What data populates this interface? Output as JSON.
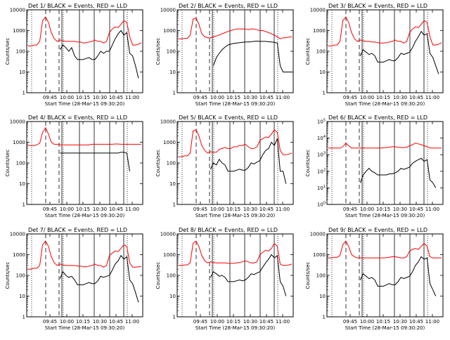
{
  "chart_data": [
    {
      "type": "line",
      "title": "Det 1/ BLACK = Events, RED = LLD",
      "xlabel": "Start Time (28-Mar-15 09:30:20)",
      "ylabel": "Counts/sec",
      "yscale": "log",
      "ylim": [
        1,
        10000
      ],
      "ytick_labels": [
        "1",
        "10",
        "100",
        "1000",
        "10000"
      ],
      "xtick_labels": [
        "09:45",
        "10:00",
        "10:15",
        "10:30",
        "10:45",
        "11:00"
      ],
      "series": [
        {
          "color": "#000000",
          "values": [
            null,
            null,
            null,
            null,
            null,
            null,
            null,
            null,
            null,
            null,
            null,
            120,
            200,
            150,
            100,
            150,
            60,
            40,
            40,
            40,
            45,
            50,
            40,
            40,
            60,
            100,
            80,
            100,
            100,
            200,
            400,
            700,
            1000,
            600,
            800,
            80,
            60,
            20,
            5,
            null
          ]
        },
        {
          "color": "#ff0000",
          "values": [
            180,
            180,
            200,
            200,
            300,
            3000,
            4500,
            2500,
            800,
            400,
            300,
            350,
            320,
            300,
            300,
            300,
            300,
            280,
            280,
            250,
            260,
            280,
            300,
            350,
            300,
            300,
            250,
            300,
            800,
            1200,
            1500,
            1400,
            2000,
            3000,
            2500,
            500,
            200,
            200,
            220,
            260
          ]
        }
      ]
    },
    {
      "type": "line",
      "title": "Det 2/ BLACK = Events, RED = LLD",
      "xlabel": "Start Time (28-Mar-15 09:30:20)",
      "ylabel": "Counts/sec",
      "yscale": "log",
      "ylim": [
        1,
        10000
      ],
      "ytick_labels": [
        "1",
        "10",
        "100",
        "1000",
        "10000"
      ],
      "xtick_labels": [
        "09:45",
        "10:00",
        "10:15",
        "10:30",
        "10:45",
        "11:00"
      ],
      "series": [
        {
          "color": "#000000",
          "values": [
            null,
            null,
            null,
            null,
            null,
            null,
            null,
            null,
            null,
            null,
            null,
            null,
            20,
            50,
            80,
            120,
            160,
            200,
            220,
            240,
            250,
            260,
            270,
            280,
            280,
            290,
            300,
            310,
            300,
            300,
            300,
            290,
            280,
            270,
            250,
            20,
            10,
            10,
            10,
            10
          ]
        },
        {
          "color": "#ff0000",
          "values": [
            400,
            400,
            420,
            420,
            600,
            3500,
            4000,
            2000,
            700,
            500,
            450,
            450,
            500,
            550,
            600,
            700,
            800,
            900,
            1000,
            1100,
            1200,
            1200,
            1200,
            1200,
            1100,
            1200,
            1200,
            1100,
            1000,
            1000,
            900,
            800,
            700,
            600,
            500,
            400,
            450,
            450,
            480,
            500
          ]
        }
      ]
    },
    {
      "type": "line",
      "title": "Det 3/ BLACK = Events, RED = LLD",
      "xlabel": "Start Time (28-Mar-15 09:30:20)",
      "ylabel": "Counts/sec",
      "yscale": "log",
      "ylim": [
        1,
        10000
      ],
      "ytick_labels": [
        "1",
        "10",
        "100",
        "1000",
        "10000"
      ],
      "xtick_labels": [
        "09:45",
        "10:00",
        "10:15",
        "10:30",
        "10:45",
        "11:00"
      ],
      "series": [
        {
          "color": "#000000",
          "values": [
            null,
            null,
            null,
            null,
            null,
            null,
            null,
            null,
            null,
            null,
            null,
            60,
            120,
            90,
            70,
            80,
            60,
            30,
            30,
            30,
            35,
            40,
            35,
            35,
            50,
            80,
            70,
            80,
            90,
            150,
            300,
            500,
            900,
            600,
            700,
            80,
            50,
            20,
            8,
            null
          ]
        },
        {
          "color": "#ff0000",
          "values": [
            180,
            180,
            200,
            200,
            300,
            3000,
            4500,
            2500,
            800,
            400,
            300,
            350,
            320,
            300,
            300,
            280,
            280,
            260,
            250,
            250,
            260,
            280,
            300,
            350,
            300,
            300,
            250,
            300,
            800,
            1200,
            1500,
            1400,
            2000,
            3000,
            2500,
            500,
            200,
            200,
            220,
            260
          ]
        }
      ]
    },
    {
      "type": "line",
      "title": "Det 4/ BLACK = Events, RED = LLD",
      "xlabel": "Start Time (28-Mar-15 09:30:20)",
      "ylabel": "Counts/sec",
      "yscale": "log",
      "ylim": [
        1,
        10000
      ],
      "ytick_labels": [
        "1",
        "10",
        "100",
        "1000",
        "10000"
      ],
      "xtick_labels": [
        "09:45",
        "10:00",
        "10:15",
        "10:30",
        "10:45",
        "11:00"
      ],
      "series": [
        {
          "color": "#000000",
          "values": [
            null,
            null,
            null,
            null,
            null,
            null,
            null,
            null,
            null,
            null,
            null,
            300,
            300,
            300,
            300,
            300,
            300,
            300,
            300,
            300,
            300,
            300,
            300,
            300,
            300,
            300,
            300,
            300,
            300,
            300,
            300,
            300,
            330,
            330,
            300,
            40,
            null,
            null,
            null,
            null
          ]
        },
        {
          "color": "#ff0000",
          "values": [
            700,
            700,
            700,
            750,
            900,
            3000,
            5000,
            2500,
            1000,
            800,
            800,
            750,
            750,
            750,
            750,
            750,
            750,
            750,
            750,
            750,
            750,
            750,
            800,
            800,
            800,
            800,
            800,
            800,
            800,
            800,
            820,
            820,
            800,
            800,
            800,
            800,
            800,
            800,
            800,
            800
          ]
        }
      ]
    },
    {
      "type": "line",
      "title": "Det 5/ BLACK = Events, RED = LLD",
      "xlabel": "Start Time (28-Mar-15 09:30:20)",
      "ylabel": "Counts/sec",
      "yscale": "log",
      "ylim": [
        1,
        10000
      ],
      "ytick_labels": [
        "1",
        "10",
        "100",
        "1000",
        "10000"
      ],
      "xtick_labels": [
        "09:45",
        "10:00",
        "10:15",
        "10:30",
        "10:45",
        "11:00"
      ],
      "series": [
        {
          "color": "#000000",
          "values": [
            null,
            null,
            null,
            null,
            null,
            null,
            null,
            null,
            null,
            null,
            null,
            50,
            100,
            80,
            150,
            100,
            80,
            40,
            40,
            40,
            45,
            50,
            45,
            45,
            60,
            100,
            90,
            110,
            130,
            250,
            400,
            500,
            1000,
            700,
            1500,
            40,
            40,
            10,
            null,
            null
          ]
        },
        {
          "color": "#ff0000",
          "values": [
            200,
            200,
            220,
            220,
            300,
            3500,
            4000,
            2000,
            700,
            400,
            300,
            350,
            320,
            330,
            450,
            500,
            550,
            500,
            500,
            600,
            600,
            700,
            700,
            800,
            600,
            500,
            500,
            600,
            1200,
            1500,
            1800,
            1700,
            2500,
            4000,
            3000,
            400,
            250,
            250,
            270,
            300
          ]
        }
      ]
    },
    {
      "type": "line",
      "title": "Det 6/ BLACK = Events, RED = LLD",
      "xlabel": "Start Time (28-Mar-15 09:30:20)",
      "ylabel": "Counts/sec",
      "yscale": "log",
      "ylim": [
        1,
        100000
      ],
      "ytick_labels": [
        "10^0",
        "10^1",
        "10^2",
        "10^3",
        "10^4",
        "10^5"
      ],
      "xtick_labels": [
        "09:45",
        "10:00",
        "10:15",
        "10:30",
        "10:45",
        "11:00"
      ],
      "series": [
        {
          "color": "#000000",
          "values": [
            null,
            null,
            null,
            null,
            null,
            null,
            null,
            null,
            null,
            null,
            null,
            20,
            60,
            100,
            150,
            100,
            80,
            60,
            60,
            60,
            60,
            70,
            70,
            80,
            100,
            150,
            130,
            150,
            180,
            300,
            400,
            500,
            600,
            400,
            500,
            30,
            20,
            10,
            null,
            null
          ]
        },
        {
          "color": "#ff0000",
          "values": [
            2500,
            2500,
            2500,
            2500,
            2500,
            3000,
            5000,
            3500,
            2500,
            2500,
            2500,
            2500,
            2500,
            2500,
            2500,
            2500,
            2500,
            2500,
            2500,
            2600,
            2700,
            2800,
            3000,
            3000,
            2800,
            2700,
            2700,
            2800,
            3500,
            4000,
            5000,
            4500,
            4000,
            3500,
            3000,
            2500,
            2500,
            2500,
            2500,
            2500
          ]
        }
      ]
    },
    {
      "type": "line",
      "title": "Det 7/ BLACK = Events, RED = LLD",
      "xlabel": "Start Time (28-Mar-15 09:30:20)",
      "ylabel": "Counts/sec",
      "yscale": "log",
      "ylim": [
        1,
        10000
      ],
      "ytick_labels": [
        "1",
        "10",
        "100",
        "1000",
        "10000"
      ],
      "xtick_labels": [
        "09:45",
        "10:00",
        "10:15",
        "10:30",
        "10:45",
        "11:00"
      ],
      "series": [
        {
          "color": "#000000",
          "values": [
            null,
            null,
            null,
            null,
            null,
            null,
            null,
            null,
            null,
            null,
            null,
            70,
            150,
            100,
            80,
            90,
            60,
            35,
            35,
            35,
            40,
            45,
            40,
            40,
            55,
            90,
            80,
            90,
            100,
            180,
            350,
            500,
            900,
            600,
            800,
            60,
            40,
            15,
            5,
            null
          ]
        },
        {
          "color": "#ff0000",
          "values": [
            200,
            200,
            220,
            220,
            300,
            3000,
            4500,
            2500,
            800,
            400,
            300,
            350,
            320,
            300,
            300,
            300,
            300,
            280,
            280,
            260,
            260,
            280,
            300,
            350,
            300,
            300,
            250,
            300,
            900,
            1200,
            1500,
            1400,
            2000,
            3000,
            2500,
            400,
            250,
            250,
            260,
            270
          ]
        }
      ]
    },
    {
      "type": "line",
      "title": "Det 8/ BLACK = Events, RED = LLD",
      "xlabel": "Start Time (28-Mar-15 09:30:20)",
      "ylabel": "Counts/sec",
      "yscale": "log",
      "ylim": [
        1,
        10000
      ],
      "ytick_labels": [
        "1",
        "10",
        "100",
        "1000",
        "10000"
      ],
      "xtick_labels": [
        "09:45",
        "10:00",
        "10:15",
        "10:30",
        "10:45",
        "11:00"
      ],
      "series": [
        {
          "color": "#000000",
          "values": [
            null,
            null,
            null,
            null,
            null,
            null,
            null,
            null,
            null,
            null,
            null,
            80,
            150,
            120,
            90,
            100,
            80,
            50,
            50,
            50,
            55,
            60,
            55,
            60,
            80,
            120,
            110,
            130,
            150,
            250,
            400,
            600,
            1000,
            700,
            900,
            50,
            30,
            10,
            null,
            null
          ]
        },
        {
          "color": "#ff0000",
          "values": [
            300,
            300,
            320,
            320,
            400,
            3500,
            4500,
            2500,
            900,
            500,
            400,
            450,
            420,
            400,
            400,
            400,
            400,
            380,
            380,
            380,
            400,
            420,
            450,
            500,
            450,
            400,
            400,
            450,
            1000,
            1300,
            1600,
            1500,
            2000,
            3500,
            2500,
            350,
            300,
            300,
            320,
            350
          ]
        }
      ]
    },
    {
      "type": "line",
      "title": "Det 9/ BLACK = Events, RED = LLD",
      "xlabel": "Start Time (28-Mar-15 09:30:20)",
      "ylabel": "Counts/sec",
      "yscale": "log",
      "ylim": [
        1,
        10000
      ],
      "ytick_labels": [
        "1",
        "10",
        "100",
        "1000",
        "10000"
      ],
      "xtick_labels": [
        "09:45",
        "10:00",
        "10:15",
        "10:30",
        "10:45",
        "11:00"
      ],
      "series": [
        {
          "color": "#000000",
          "values": [
            null,
            null,
            null,
            null,
            null,
            null,
            null,
            null,
            null,
            null,
            null,
            60,
            120,
            90,
            70,
            80,
            60,
            30,
            30,
            30,
            35,
            40,
            35,
            35,
            50,
            80,
            70,
            80,
            90,
            150,
            300,
            450,
            800,
            600,
            700,
            40,
            20,
            10,
            null,
            null
          ]
        },
        {
          "color": "#ff0000",
          "values": [
            700,
            700,
            750,
            750,
            900,
            3000,
            4500,
            2500,
            1000,
            800,
            700,
            700,
            700,
            700,
            700,
            700,
            700,
            700,
            700,
            700,
            720,
            750,
            800,
            800,
            750,
            700,
            700,
            800,
            1500,
            1800,
            2000,
            1800,
            2500,
            3500,
            2500,
            800,
            700,
            700,
            700,
            700
          ]
        }
      ]
    }
  ]
}
